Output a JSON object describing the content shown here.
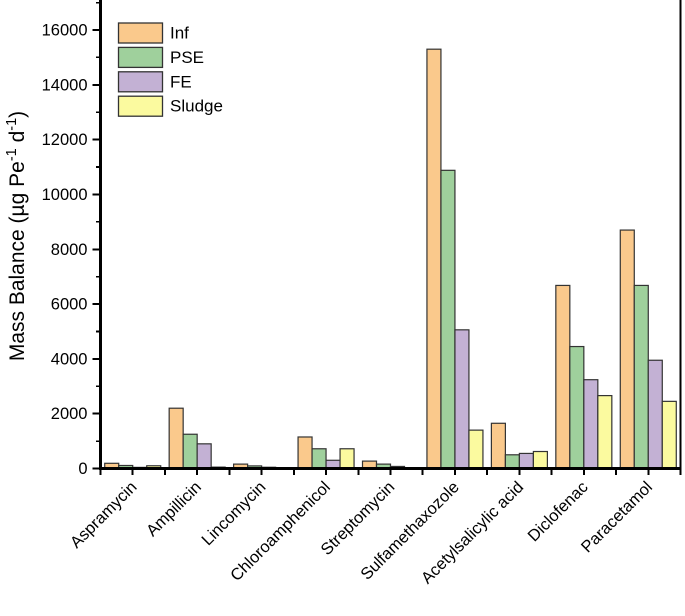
{
  "chart_data": {
    "type": "bar",
    "title": "",
    "ylabel": "Mass Balance (µg Pe⁻¹ d⁻¹)",
    "ylabel_parts": [
      {
        "text": "Mass Balance (µg Pe",
        "sup": false
      },
      {
        "text": "-1",
        "sup": true
      },
      {
        "text": " d",
        "sup": false
      },
      {
        "text": "-1",
        "sup": true
      },
      {
        "text": ")",
        "sup": false
      }
    ],
    "xlabel": "",
    "categories": [
      "Aspramycin",
      "Ampillicin",
      "Lincomycin",
      "Chloroamphenicol",
      "Streptomycin",
      "Sulfamethaxozole",
      "Acetylsalicylic acid",
      "Diclofenac",
      "Paracetamol"
    ],
    "series": [
      {
        "name": "Inf",
        "color": "#FAC98C",
        "values": [
          190,
          2200,
          160,
          1150,
          270,
          15300,
          1650,
          6680,
          8700
        ]
      },
      {
        "name": "PSE",
        "color": "#9FD09C",
        "values": [
          110,
          1250,
          95,
          720,
          160,
          10880,
          500,
          4450,
          6680
        ]
      },
      {
        "name": "FE",
        "color": "#C3B1D4",
        "values": [
          40,
          900,
          45,
          300,
          75,
          5060,
          550,
          3240,
          3950
        ]
      },
      {
        "name": "Sludge",
        "color": "#FBFA9F",
        "values": [
          100,
          50,
          25,
          720,
          30,
          1400,
          620,
          2660,
          2450
        ]
      }
    ],
    "ylim": [
      0,
      17100
    ],
    "yticks_major": [
      0,
      2000,
      4000,
      6000,
      8000,
      10000,
      12000,
      14000,
      16000
    ],
    "yticks_minor": [
      1000,
      3000,
      5000,
      7000,
      9000,
      11000,
      13000,
      15000,
      17000
    ],
    "legend_position": "top-left",
    "grid": false,
    "bar_outline_color": "#333333",
    "axis_color": "#000000"
  }
}
